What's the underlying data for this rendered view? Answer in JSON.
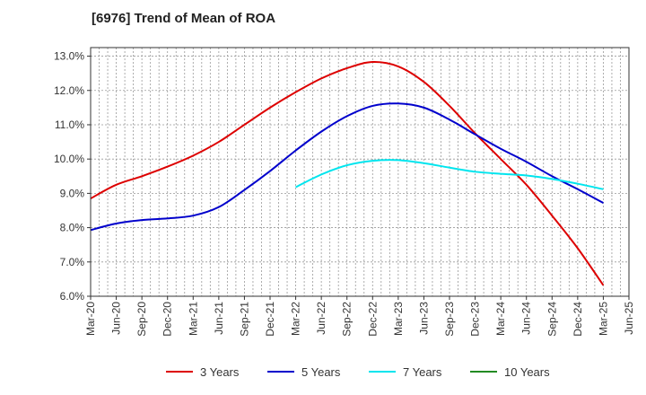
{
  "chart_data": {
    "type": "line",
    "title": "[6976]  Trend of Mean of ROA",
    "xlabel": "",
    "ylabel": "",
    "ylim": [
      6.0,
      13.25
    ],
    "y_ticks": [
      6.0,
      7.0,
      8.0,
      9.0,
      10.0,
      11.0,
      12.0,
      13.0
    ],
    "y_tick_labels": [
      "6.0%",
      "7.0%",
      "8.0%",
      "9.0%",
      "10.0%",
      "11.0%",
      "12.0%",
      "13.0%"
    ],
    "x_tick_labels": [
      "Mar-20",
      "Jun-20",
      "Sep-20",
      "Dec-20",
      "Mar-21",
      "Jun-21",
      "Sep-21",
      "Dec-21",
      "Mar-22",
      "Jun-22",
      "Sep-22",
      "Dec-22",
      "Mar-23",
      "Jun-23",
      "Sep-23",
      "Dec-23",
      "Mar-24",
      "Jun-24",
      "Sep-24",
      "Dec-24",
      "Mar-25",
      "Jun-25"
    ],
    "grid": true,
    "legend_position": "bottom",
    "series": [
      {
        "name": "3 Years",
        "color": "#dd0000",
        "start_index": 0,
        "values": [
          8.85,
          9.25,
          9.5,
          9.78,
          10.1,
          10.5,
          11.0,
          11.5,
          11.95,
          12.35,
          12.65,
          12.83,
          12.7,
          12.25,
          11.55,
          10.75,
          10.0,
          9.25,
          8.35,
          7.4,
          6.32
        ]
      },
      {
        "name": "5 Years",
        "color": "#0000cc",
        "start_index": 0,
        "values": [
          7.93,
          8.12,
          8.22,
          8.27,
          8.35,
          8.6,
          9.1,
          9.65,
          10.25,
          10.8,
          11.25,
          11.55,
          11.62,
          11.5,
          11.15,
          10.72,
          10.3,
          9.92,
          9.5,
          9.12,
          8.72
        ]
      },
      {
        "name": "7 Years",
        "color": "#00e5ee",
        "start_index": 8,
        "values": [
          9.18,
          9.55,
          9.82,
          9.95,
          9.97,
          9.88,
          9.75,
          9.63,
          9.57,
          9.52,
          9.42,
          9.28,
          9.12
        ]
      },
      {
        "name": "10 Years",
        "color": "#228b22",
        "start_index": 0,
        "values": []
      }
    ]
  }
}
